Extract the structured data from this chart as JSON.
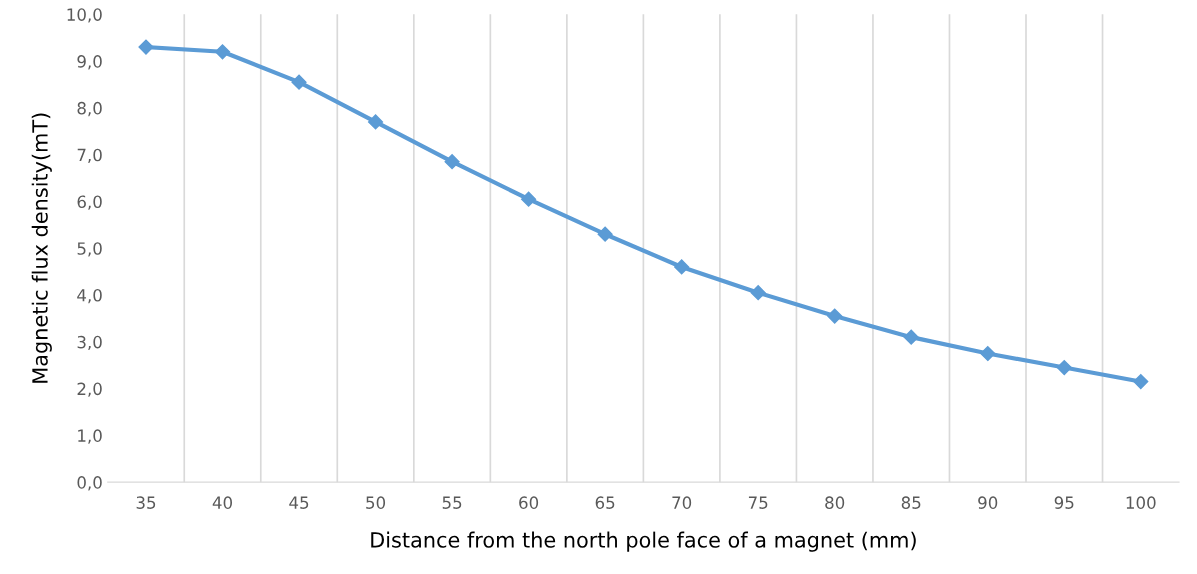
{
  "chart_data": {
    "type": "line",
    "xlabel": "Distance from the north pole face of a magnet (mm)",
    "ylabel": "Magnetic flux density(mT)",
    "categories": [
      "35",
      "40",
      "45",
      "50",
      "55",
      "60",
      "65",
      "70",
      "75",
      "80",
      "85",
      "90",
      "95",
      "100"
    ],
    "series": [
      {
        "color": "#5b9bd5",
        "values": [
          9.3,
          9.2,
          8.55,
          7.7,
          6.85,
          6.05,
          5.3,
          4.6,
          4.05,
          3.55,
          3.1,
          2.75,
          2.45,
          2.15
        ]
      }
    ],
    "ylim": [
      0,
      10
    ],
    "yticks": [
      {
        "value": 0,
        "label": "0,0"
      },
      {
        "value": 1,
        "label": "1,0"
      },
      {
        "value": 2,
        "label": "2,0"
      },
      {
        "value": 3,
        "label": "3,0"
      },
      {
        "value": 4,
        "label": "4,0"
      },
      {
        "value": 5,
        "label": "5,0"
      },
      {
        "value": 6,
        "label": "6,0"
      },
      {
        "value": 7,
        "label": "7,0"
      },
      {
        "value": 8,
        "label": "8,0"
      },
      {
        "value": 9,
        "label": "9,0"
      },
      {
        "value": 10,
        "label": "10,0"
      }
    ],
    "grid": "x",
    "marker": "diamond",
    "line_style": "solid"
  }
}
